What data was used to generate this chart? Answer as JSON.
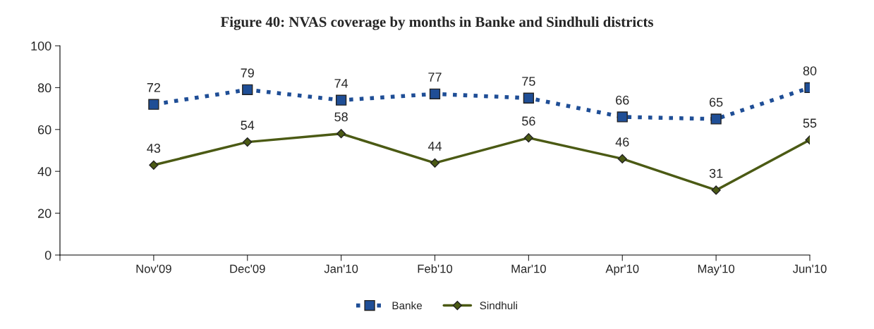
{
  "chart_data": {
    "type": "line",
    "title": "Figure 40: NVAS coverage by months in Banke and Sindhuli districts",
    "categories": [
      null,
      "Nov'09",
      "Dec'09",
      "Jan'10",
      "Feb'10",
      "Mar'10",
      "Apr'10",
      "May'10",
      "Jun'10"
    ],
    "series": [
      {
        "name": "Banke",
        "color": "#1f4e96",
        "marker": "square",
        "line_style": "dotted",
        "values": [
          null,
          72,
          79,
          74,
          77,
          75,
          66,
          65,
          80
        ]
      },
      {
        "name": "Sindhuli",
        "color": "#4b5a14",
        "marker": "diamond",
        "line_style": "solid",
        "values": [
          null,
          43,
          54,
          58,
          44,
          56,
          46,
          31,
          55
        ]
      }
    ],
    "ylim": [
      0,
      100
    ],
    "yticks": [
      0,
      20,
      40,
      60,
      80,
      100
    ],
    "grid": false,
    "legend": "bottom",
    "data_labels": true
  }
}
